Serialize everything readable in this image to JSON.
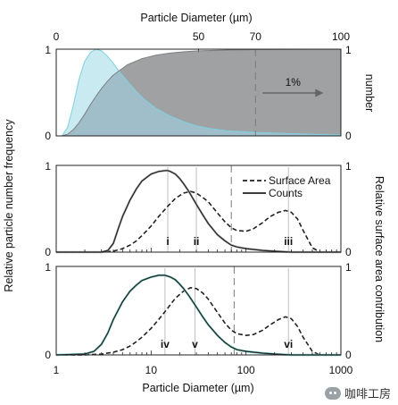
{
  "colors": {
    "number_fill": "#bfe6ef",
    "number_edge": "#7fcfe0",
    "cumulative_fill": "#8f9092",
    "overlap_fill": "#9bb8c6",
    "counts_line": "#222222",
    "counts_line_alt": "#6fc6c0",
    "surface_line": "#222222",
    "marker_line": "#bfbfbf",
    "cutoff_line": "#7a7a7a"
  },
  "chart_data": [
    {
      "type": "area",
      "panel": "top",
      "xlabel": "Particle Diameter (µm)",
      "xscale": "linear",
      "xlim": [
        0,
        100
      ],
      "xticks": [
        "0",
        "50",
        "70",
        "100"
      ],
      "xtick_values": [
        0,
        50,
        70,
        100
      ],
      "ylim": [
        0,
        1
      ],
      "yticks_left": [
        "0",
        "1"
      ],
      "yticks_right": [
        "0",
        "1"
      ],
      "ylabel_right": "number",
      "annotation": "1%",
      "cutoff_x": 70,
      "series": [
        {
          "x": [
            0,
            2,
            4,
            6,
            8,
            10,
            12,
            14,
            16,
            18,
            20,
            22,
            25,
            28,
            31,
            35,
            40,
            45,
            50,
            55,
            60,
            70,
            80,
            90,
            100
          ],
          "y": [
            0,
            0,
            0.1,
            0.35,
            0.65,
            0.86,
            0.96,
            1.0,
            0.98,
            0.92,
            0.84,
            0.75,
            0.63,
            0.52,
            0.42,
            0.32,
            0.23,
            0.16,
            0.11,
            0.08,
            0.06,
            0.04,
            0.03,
            0.02,
            0.01
          ]
        },
        {
          "x": [
            0,
            2,
            4,
            6,
            8,
            10,
            12,
            14,
            16,
            18,
            20,
            25,
            30,
            35,
            40,
            45,
            50,
            60,
            70,
            80,
            90,
            100
          ],
          "y": [
            0,
            0,
            0.02,
            0.07,
            0.15,
            0.25,
            0.36,
            0.46,
            0.55,
            0.63,
            0.7,
            0.82,
            0.89,
            0.93,
            0.955,
            0.97,
            0.98,
            0.99,
            0.995,
            0.998,
            1.0,
            1.0
          ]
        }
      ]
    },
    {
      "type": "line",
      "panel": "middle",
      "xscale": "log",
      "xlim": [
        1,
        1000
      ],
      "ylim": [
        0,
        1
      ],
      "yticks_left": [
        "0",
        "1"
      ],
      "yticks_right": [
        "0",
        "1"
      ],
      "markers": [
        {
          "label": "i",
          "x": 15
        },
        {
          "label": "ii",
          "x": 30
        },
        {
          "label": "iii",
          "x": 280
        }
      ],
      "cutoff_x": 70,
      "legend": [
        "Surface Area",
        "Counts"
      ],
      "legend_position": "upper-right",
      "series": [
        {
          "name": "Surface Area",
          "style": "dashed",
          "x": [
            1,
            2,
            3,
            4,
            5,
            6,
            7,
            8,
            10,
            12,
            15,
            18,
            22,
            26,
            30,
            35,
            40,
            50,
            60,
            70,
            80,
            100,
            120,
            150,
            180,
            220,
            260,
            300,
            350,
            400,
            500,
            600,
            1000
          ],
          "y": [
            0,
            0,
            0,
            0.01,
            0.04,
            0.08,
            0.13,
            0.19,
            0.3,
            0.41,
            0.53,
            0.62,
            0.68,
            0.7,
            0.68,
            0.63,
            0.58,
            0.45,
            0.35,
            0.28,
            0.25,
            0.24,
            0.27,
            0.34,
            0.41,
            0.46,
            0.48,
            0.46,
            0.38,
            0.25,
            0.05,
            0,
            0
          ]
        },
        {
          "name": "Counts",
          "style": "solid",
          "x": [
            1,
            2,
            3,
            3.5,
            4,
            4.5,
            5,
            6,
            7,
            8,
            10,
            12,
            14,
            15,
            16,
            18,
            20,
            22,
            25,
            30,
            35,
            40,
            50,
            60,
            70,
            80,
            100,
            150,
            200,
            300,
            500,
            1000
          ],
          "y": [
            0,
            0,
            0,
            0.02,
            0.1,
            0.27,
            0.41,
            0.6,
            0.73,
            0.82,
            0.9,
            0.93,
            0.94,
            0.94,
            0.93,
            0.9,
            0.85,
            0.79,
            0.7,
            0.55,
            0.43,
            0.33,
            0.2,
            0.13,
            0.08,
            0.06,
            0.04,
            0.02,
            0.01,
            0,
            0,
            0
          ]
        }
      ]
    },
    {
      "type": "line",
      "panel": "bottom",
      "xlabel": "Particle Diameter (µm)",
      "xscale": "log",
      "xlim": [
        1,
        1000
      ],
      "xticks": [
        "1",
        "10",
        "100",
        "1000"
      ],
      "xtick_values": [
        1,
        10,
        100,
        1000
      ],
      "ylim": [
        0,
        1
      ],
      "yticks_left": [
        "0",
        "1"
      ],
      "yticks_right": [
        "0",
        "1"
      ],
      "markers": [
        {
          "label": "iv",
          "x": 14
        },
        {
          "label": "v",
          "x": 29
        },
        {
          "label": "vi",
          "x": 280
        }
      ],
      "cutoff_x": 75,
      "series": [
        {
          "style": "dashed",
          "x": [
            1,
            2,
            3,
            4,
            5,
            6,
            7,
            8,
            10,
            12,
            15,
            18,
            22,
            26,
            30,
            35,
            40,
            50,
            60,
            70,
            80,
            100,
            120,
            150,
            180,
            220,
            260,
            300,
            350,
            400,
            500,
            600,
            1000
          ],
          "y": [
            0,
            0,
            0.01,
            0.03,
            0.06,
            0.1,
            0.15,
            0.2,
            0.3,
            0.4,
            0.53,
            0.64,
            0.72,
            0.76,
            0.75,
            0.7,
            0.63,
            0.48,
            0.36,
            0.28,
            0.24,
            0.22,
            0.23,
            0.28,
            0.34,
            0.4,
            0.43,
            0.41,
            0.32,
            0.2,
            0.04,
            0,
            0
          ]
        },
        {
          "style": "solid",
          "x": [
            1,
            2,
            2.5,
            3,
            3.5,
            4,
            5,
            6,
            7,
            8,
            10,
            12,
            14,
            16,
            18,
            20,
            22,
            25,
            30,
            35,
            40,
            50,
            60,
            70,
            80,
            100,
            150,
            200,
            300,
            500,
            1000
          ],
          "y": [
            0,
            0.01,
            0.04,
            0.12,
            0.25,
            0.4,
            0.6,
            0.72,
            0.79,
            0.84,
            0.88,
            0.9,
            0.9,
            0.88,
            0.85,
            0.8,
            0.75,
            0.67,
            0.54,
            0.43,
            0.34,
            0.22,
            0.14,
            0.09,
            0.06,
            0.04,
            0.02,
            0.01,
            0,
            0,
            0
          ]
        }
      ]
    }
  ],
  "figure": {
    "left_ylabel": "Relative particle number frequency",
    "right_ylabel": "Relative surface area contribution"
  },
  "watermark": {
    "text": "咖啡工房"
  }
}
